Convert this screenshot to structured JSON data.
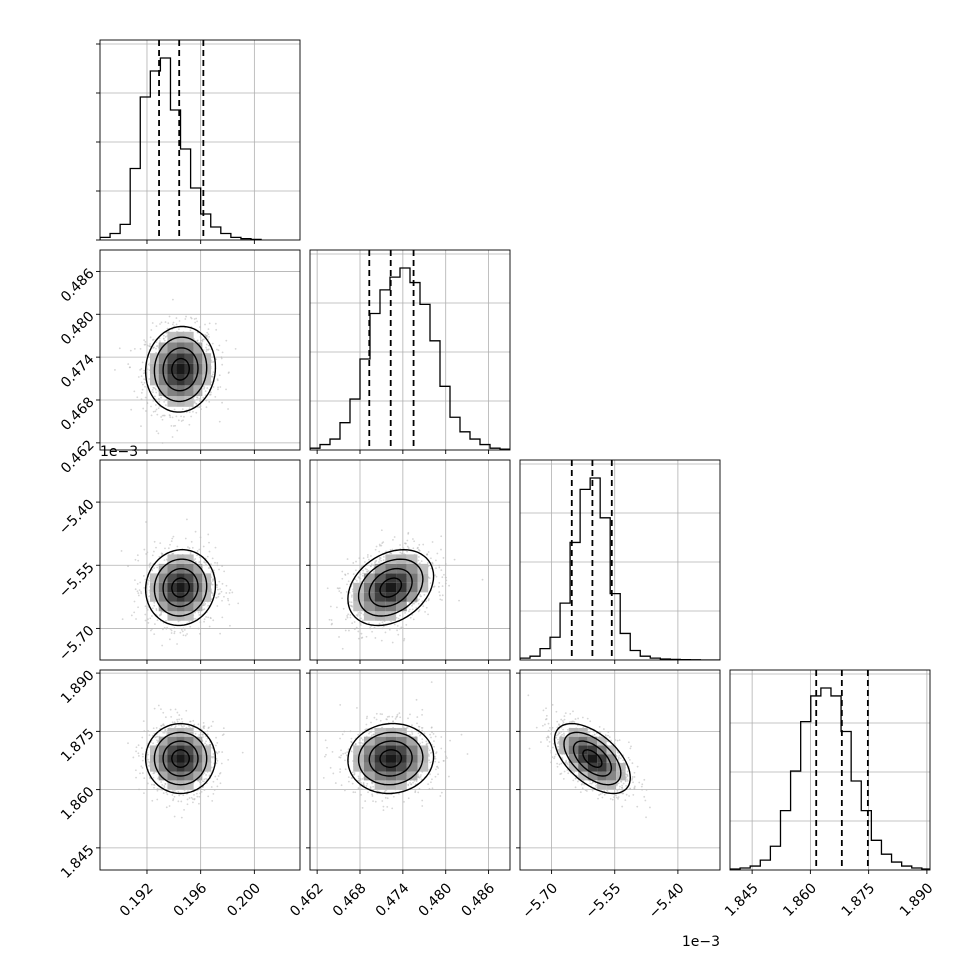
{
  "chart_data": {
    "type": "corner",
    "title": "",
    "parameters": [
      {
        "name": "",
        "range": [
          0.1885,
          0.2034
        ],
        "ticks": [
          {
            "value": 0.192,
            "label": "0.192"
          },
          {
            "value": 0.196,
            "label": "0.196"
          },
          {
            "value": 0.2,
            "label": "0.200"
          }
        ],
        "offset_label": "",
        "quantiles": [
          0.1929,
          0.1944,
          0.1962
        ],
        "histogram": {
          "edges_start": 0.1885,
          "bin_width": 0.00075,
          "counts": [
            2,
            5,
            12,
            55,
            110,
            130,
            140,
            100,
            70,
            40,
            20,
            10,
            5,
            2,
            1,
            0.5
          ]
        },
        "mean": 0.1945,
        "sigma": 0.0013
      },
      {
        "name": "",
        "range": [
          0.461,
          0.489
        ],
        "ticks": [
          {
            "value": 0.462,
            "label": "0.462"
          },
          {
            "value": 0.468,
            "label": "0.468"
          },
          {
            "value": 0.474,
            "label": "0.474"
          },
          {
            "value": 0.48,
            "label": "0.480"
          },
          {
            "value": 0.486,
            "label": "0.486"
          }
        ],
        "offset_label": "",
        "quantiles": [
          0.4693,
          0.4723,
          0.4755
        ],
        "histogram": {
          "edges_start": 0.461,
          "bin_width": 0.0014,
          "counts": [
            1,
            3,
            6,
            15,
            28,
            50,
            75,
            88,
            95,
            100,
            92,
            80,
            60,
            35,
            18,
            10,
            6,
            3,
            1,
            0.5
          ]
        },
        "mean": 0.4723,
        "sigma": 0.003
      },
      {
        "name": "",
        "range": [
          -5.775,
          -5.3
        ],
        "ticks": [
          {
            "value": -5.7,
            "label": "−5.70"
          },
          {
            "value": -5.55,
            "label": "−5.55"
          },
          {
            "value": -5.4,
            "label": "−5.40"
          }
        ],
        "offset_label": "1e−3",
        "quantiles": [
          -5.652,
          -5.603,
          -5.557
        ],
        "histogram": {
          "edges_start": -5.775,
          "bin_width": 0.0238,
          "counts": [
            1,
            2,
            6,
            12,
            30,
            62,
            90,
            96,
            75,
            35,
            14,
            5,
            2,
            1,
            0.5,
            0.3,
            0.2,
            0.1,
            0,
            0
          ]
        },
        "mean": -5.603,
        "sigma": 0.045
      },
      {
        "name": "",
        "range": [
          1.8393,
          1.8908
        ],
        "ticks": [
          {
            "value": 1.845,
            "label": "1.845"
          },
          {
            "value": 1.86,
            "label": "1.860"
          },
          {
            "value": 1.875,
            "label": "1.875"
          },
          {
            "value": 1.89,
            "label": "1.890"
          }
        ],
        "offset_label": "",
        "quantiles": [
          1.8615,
          1.8681,
          1.8748
        ],
        "histogram": {
          "edges_start": 1.8393,
          "bin_width": 0.0026,
          "counts": [
            0.5,
            1,
            2,
            5,
            12,
            30,
            50,
            75,
            88,
            92,
            88,
            70,
            45,
            30,
            15,
            8,
            4,
            2,
            1,
            0.5
          ]
        },
        "mean": 1.868,
        "sigma": 0.0045
      }
    ],
    "correlations": [
      [
        1,
        0.05,
        0.05,
        0.0
      ],
      [
        0.05,
        1,
        0.3,
        0.05
      ],
      [
        0.05,
        0.3,
        1,
        -0.55
      ],
      [
        0.0,
        0.05,
        -0.55,
        1
      ]
    ],
    "grid": true,
    "colors": {
      "line": "#000000",
      "scatter": "#bbbbbb",
      "grid": "#b0b0b0"
    }
  }
}
